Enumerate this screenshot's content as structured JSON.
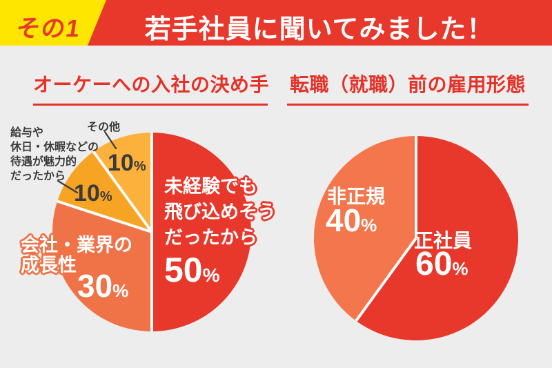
{
  "page": {
    "background": "#EDEDED"
  },
  "header": {
    "badge_label": "その1",
    "badge_bg": "#FFE600",
    "title": "若手社員に聞いてみました！",
    "banner_bg": "#E8372B"
  },
  "percent_sign": "%",
  "left_chart": {
    "title": "オーケーへの入社の決め手",
    "slice50": {
      "line1": "未経験でも",
      "line2": "飛び込めそう",
      "line3": "だったから",
      "pct": "50"
    },
    "slice30": {
      "line1": "会社・業界の",
      "line2": "成長性",
      "pct": "30"
    },
    "slice10_salary": {
      "pct": "10"
    },
    "slice10_other": {
      "pct": "10"
    },
    "callout_salary": {
      "line1": "給与や",
      "line2": "休日・休暇などの",
      "line3": "待遇が魅力的",
      "line4": "だったから"
    },
    "callout_other": "その他"
  },
  "right_chart": {
    "title": "転職（就職）前の雇用形態",
    "slice60": {
      "label": "正社員",
      "pct": "60"
    },
    "slice40": {
      "label": "非正規",
      "pct": "40"
    }
  },
  "chart_data": [
    {
      "type": "pie",
      "title": "オーケーへの入社の決め手",
      "start_angle": "top",
      "direction": "clockwise",
      "slices": [
        {
          "label": "未経験でも飛び込めそうだったから",
          "value": 50,
          "color": "#E7382B"
        },
        {
          "label": "会社・業界の成長性",
          "value": 30,
          "color": "#EF7347"
        },
        {
          "label": "給与や休日・休暇などの待遇が魅力的だったから",
          "value": 10,
          "color": "#F7A324"
        },
        {
          "label": "その他",
          "value": 10,
          "color": "#FBB13C"
        }
      ]
    },
    {
      "type": "pie",
      "title": "転職（就職）前の雇用形態",
      "start_angle": "top",
      "direction": "clockwise",
      "slices": [
        {
          "label": "正社員",
          "value": 60,
          "color": "#E7382B"
        },
        {
          "label": "非正規",
          "value": 40,
          "color": "#F3764D"
        }
      ]
    }
  ]
}
